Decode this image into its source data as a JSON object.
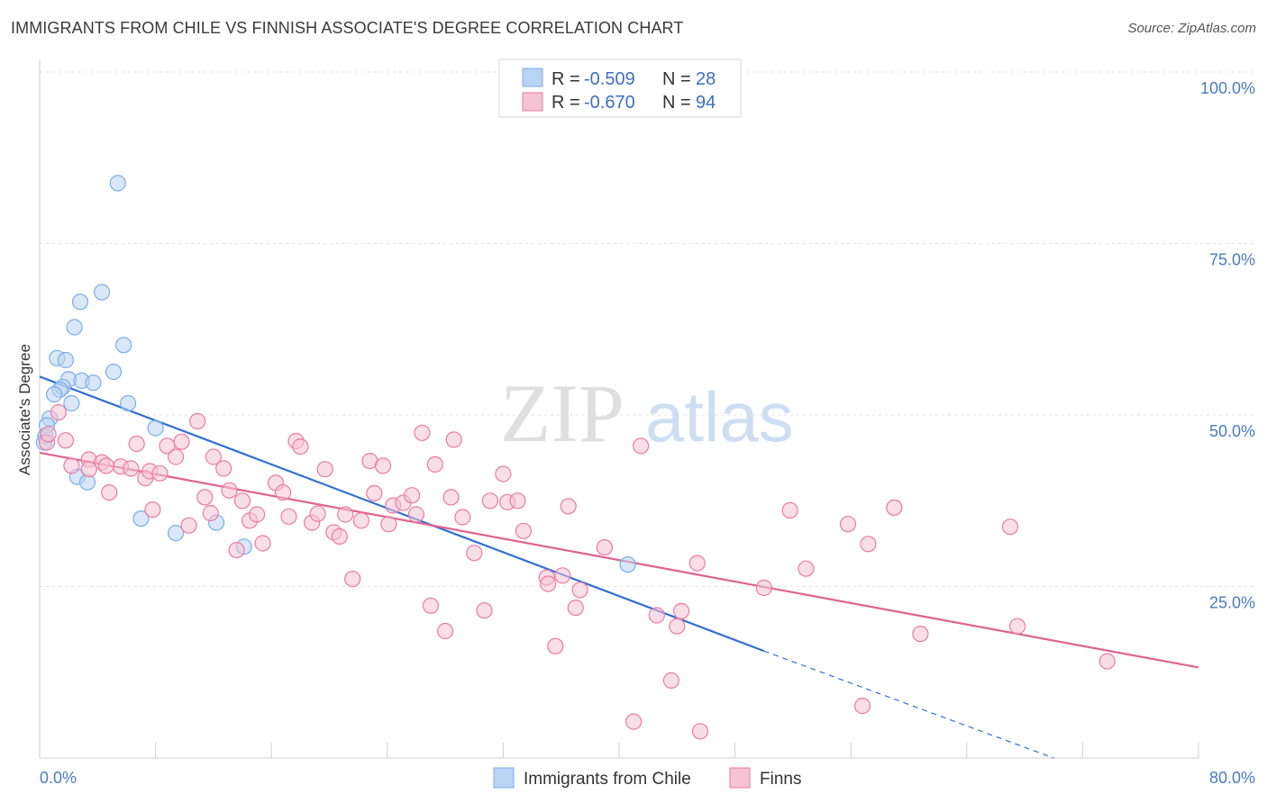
{
  "chart_data": {
    "type": "scatter",
    "title": "IMMIGRANTS FROM CHILE VS FINNISH ASSOCIATE'S DEGREE CORRELATION CHART",
    "source": "Source: ZipAtlas.com",
    "xlabel": "",
    "ylabel": "Associate's Degree",
    "xlim": [
      0,
      80
    ],
    "ylim": [
      0,
      100
    ],
    "x_tick_labels": [
      "0.0%",
      "80.0%"
    ],
    "y_tick_labels": [
      "100.0%",
      "75.0%",
      "50.0%",
      "25.0%"
    ],
    "y_ticks": [
      100,
      75,
      50,
      25
    ],
    "grid": true,
    "watermark": "ZIPatlas",
    "legend": [
      {
        "r_label": "R =",
        "r_value": "-0.509",
        "n_label": "N =",
        "n_value": "28"
      },
      {
        "r_label": "R =",
        "r_value": "-0.670",
        "n_label": "N =",
        "n_value": "94"
      }
    ],
    "series": [
      {
        "name": "Immigrants from Chile",
        "color": "#7aaee8",
        "fill": "#b9d3f3",
        "trend": {
          "x": [
            0,
            50
          ],
          "y": [
            55.6,
            15.6
          ],
          "dashed_to": [
            70,
            0.0
          ]
        },
        "points": [
          [
            5.4,
            83.8
          ],
          [
            4.3,
            67.9
          ],
          [
            2.8,
            66.5
          ],
          [
            2.4,
            62.8
          ],
          [
            5.8,
            60.2
          ],
          [
            1.2,
            58.3
          ],
          [
            1.8,
            58.0
          ],
          [
            5.1,
            56.3
          ],
          [
            2.0,
            55.2
          ],
          [
            2.9,
            55.0
          ],
          [
            3.7,
            54.7
          ],
          [
            1.6,
            54.1
          ],
          [
            1.4,
            53.7
          ],
          [
            1.0,
            53.0
          ],
          [
            2.2,
            51.7
          ],
          [
            6.1,
            51.7
          ],
          [
            0.7,
            49.5
          ],
          [
            0.5,
            48.5
          ],
          [
            8.0,
            48.1
          ],
          [
            0.4,
            46.9
          ],
          [
            0.3,
            46.0
          ],
          [
            2.6,
            41.0
          ],
          [
            3.3,
            40.2
          ],
          [
            7.0,
            34.9
          ],
          [
            9.4,
            32.8
          ],
          [
            12.2,
            34.3
          ],
          [
            14.1,
            30.8
          ],
          [
            40.6,
            28.2
          ]
        ]
      },
      {
        "name": "Finns",
        "color": "#eb7aa3",
        "fill": "#f6c3d4",
        "trend": {
          "x": [
            0,
            80
          ],
          "y": [
            44.5,
            13.2
          ]
        },
        "points": [
          [
            0.5,
            46.0
          ],
          [
            1.3,
            50.4
          ],
          [
            1.8,
            46.3
          ],
          [
            3.4,
            43.5
          ],
          [
            4.3,
            43.1
          ],
          [
            4.8,
            38.7
          ],
          [
            5.6,
            42.5
          ],
          [
            6.3,
            42.2
          ],
          [
            6.7,
            45.8
          ],
          [
            7.3,
            40.8
          ],
          [
            7.6,
            41.8
          ],
          [
            8.3,
            41.5
          ],
          [
            7.8,
            36.2
          ],
          [
            8.8,
            45.5
          ],
          [
            9.4,
            43.9
          ],
          [
            9.8,
            46.1
          ],
          [
            10.3,
            33.9
          ],
          [
            10.9,
            49.1
          ],
          [
            11.4,
            38.0
          ],
          [
            11.8,
            35.7
          ],
          [
            12.0,
            43.9
          ],
          [
            12.7,
            42.2
          ],
          [
            13.1,
            39.0
          ],
          [
            13.6,
            30.3
          ],
          [
            14.0,
            37.5
          ],
          [
            14.5,
            34.6
          ],
          [
            15.0,
            35.5
          ],
          [
            15.4,
            31.3
          ],
          [
            16.3,
            40.1
          ],
          [
            16.8,
            38.7
          ],
          [
            17.2,
            35.2
          ],
          [
            17.7,
            46.2
          ],
          [
            18.0,
            45.4
          ],
          [
            18.8,
            34.3
          ],
          [
            19.2,
            35.6
          ],
          [
            19.7,
            42.1
          ],
          [
            20.3,
            32.9
          ],
          [
            20.7,
            32.3
          ],
          [
            21.1,
            35.5
          ],
          [
            21.6,
            26.1
          ],
          [
            22.2,
            34.6
          ],
          [
            22.8,
            43.3
          ],
          [
            23.1,
            38.6
          ],
          [
            23.7,
            42.6
          ],
          [
            24.1,
            34.1
          ],
          [
            24.4,
            36.8
          ],
          [
            25.1,
            37.2
          ],
          [
            25.7,
            38.3
          ],
          [
            26.0,
            35.5
          ],
          [
            26.4,
            47.4
          ],
          [
            27.0,
            22.2
          ],
          [
            27.3,
            42.8
          ],
          [
            28.0,
            18.5
          ],
          [
            28.4,
            38.0
          ],
          [
            28.6,
            46.4
          ],
          [
            29.2,
            35.1
          ],
          [
            30.0,
            29.9
          ],
          [
            30.7,
            21.5
          ],
          [
            31.1,
            37.5
          ],
          [
            32.0,
            41.4
          ],
          [
            32.3,
            37.3
          ],
          [
            33.0,
            37.5
          ],
          [
            33.4,
            33.1
          ],
          [
            35.0,
            26.3
          ],
          [
            35.1,
            25.4
          ],
          [
            35.6,
            16.3
          ],
          [
            36.1,
            26.6
          ],
          [
            36.5,
            36.7
          ],
          [
            37.0,
            21.9
          ],
          [
            37.3,
            24.5
          ],
          [
            39.0,
            30.7
          ],
          [
            41.0,
            5.3
          ],
          [
            41.5,
            45.5
          ],
          [
            42.6,
            20.8
          ],
          [
            43.6,
            11.3
          ],
          [
            44.0,
            19.2
          ],
          [
            44.3,
            21.4
          ],
          [
            45.4,
            28.4
          ],
          [
            45.6,
            3.9
          ],
          [
            50.0,
            24.8
          ],
          [
            51.8,
            36.1
          ],
          [
            52.9,
            27.6
          ],
          [
            55.8,
            34.1
          ],
          [
            56.8,
            7.6
          ],
          [
            57.2,
            31.2
          ],
          [
            59.0,
            36.5
          ],
          [
            60.8,
            18.1
          ],
          [
            67.0,
            33.7
          ],
          [
            67.5,
            19.2
          ],
          [
            73.7,
            14.1
          ],
          [
            4.6,
            42.6
          ],
          [
            2.2,
            42.6
          ],
          [
            3.4,
            42.1
          ],
          [
            0.6,
            47.2
          ]
        ]
      }
    ]
  }
}
